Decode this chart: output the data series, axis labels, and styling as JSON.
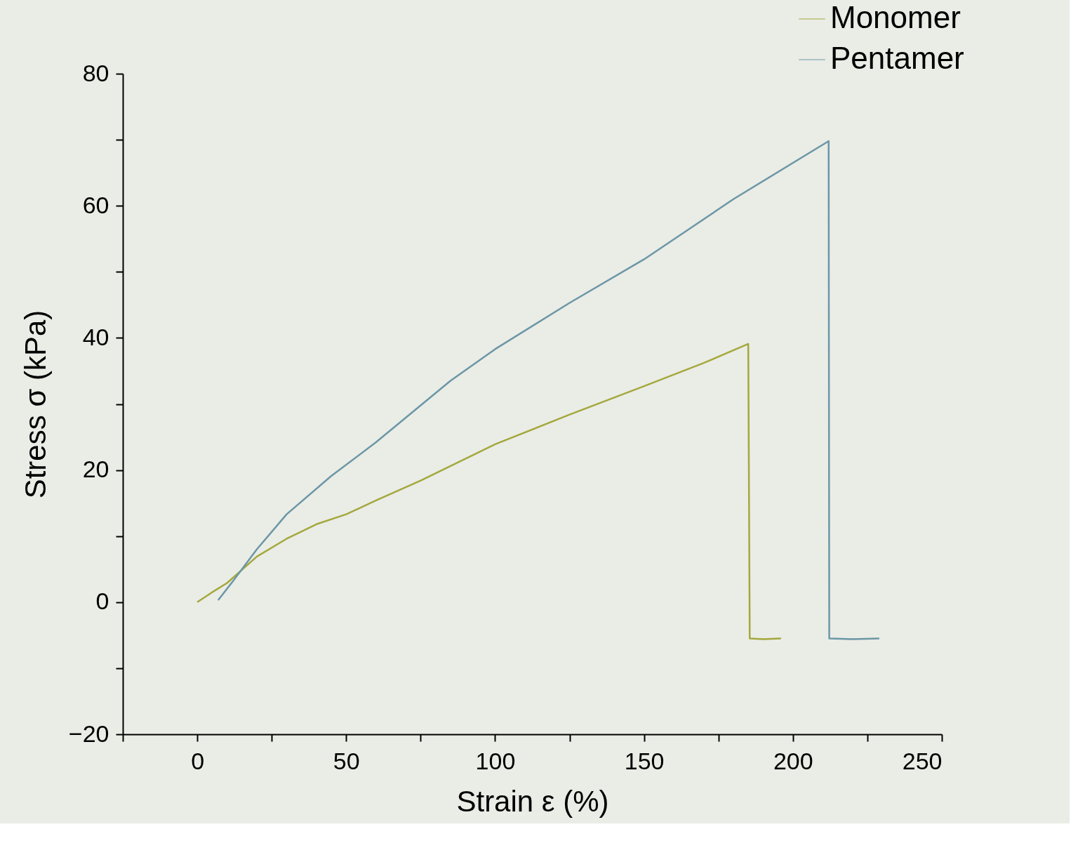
{
  "chart_data": {
    "type": "line",
    "xlabel": "Strain ε (%)",
    "ylabel": "Stress σ (kPa)",
    "xlim": [
      -25,
      250
    ],
    "ylim": [
      -20,
      80
    ],
    "xticks": [
      {
        "value": -25,
        "label": null
      },
      0,
      {
        "value": 25,
        "label": null
      },
      50,
      {
        "value": 75,
        "label": null
      },
      100,
      {
        "value": 125,
        "label": null
      },
      150,
      {
        "value": 175,
        "label": null
      },
      200,
      {
        "value": 225,
        "label": null
      },
      250
    ],
    "yticks": [
      -20,
      {
        "value": -10,
        "label": null
      },
      0,
      {
        "value": 10,
        "label": null
      },
      20,
      {
        "value": 30,
        "label": null
      },
      40,
      {
        "value": 50,
        "label": null
      },
      60,
      {
        "value": 70,
        "label": null
      },
      80
    ],
    "grid": false,
    "legend": "top right",
    "marker": "none",
    "line_style": "solid",
    "series": [
      {
        "name": "Monomer",
        "color": "#a4a83c",
        "x": [
          0,
          5,
          10,
          20,
          30,
          40,
          50,
          60,
          75,
          100,
          125,
          150,
          170,
          185,
          185.5,
          190,
          196
        ],
        "values": [
          0,
          1.5,
          2.9,
          6.9,
          9.6,
          11.8,
          13.3,
          15.4,
          18.4,
          23.9,
          28.4,
          32.7,
          36.2,
          39.1,
          -5.5,
          -5.6,
          -5.5
        ]
      },
      {
        "name": "Pentamer",
        "color": "#6b97a6",
        "x": [
          7,
          12,
          20,
          30,
          45,
          60,
          85,
          100,
          125,
          150,
          180,
          212,
          212.2,
          220,
          229
        ],
        "values": [
          0.3,
          3.2,
          8,
          13.3,
          19.1,
          24.2,
          33.5,
          38.3,
          45.3,
          51.9,
          61,
          69.8,
          -5.5,
          -5.6,
          -5.5
        ]
      }
    ]
  }
}
